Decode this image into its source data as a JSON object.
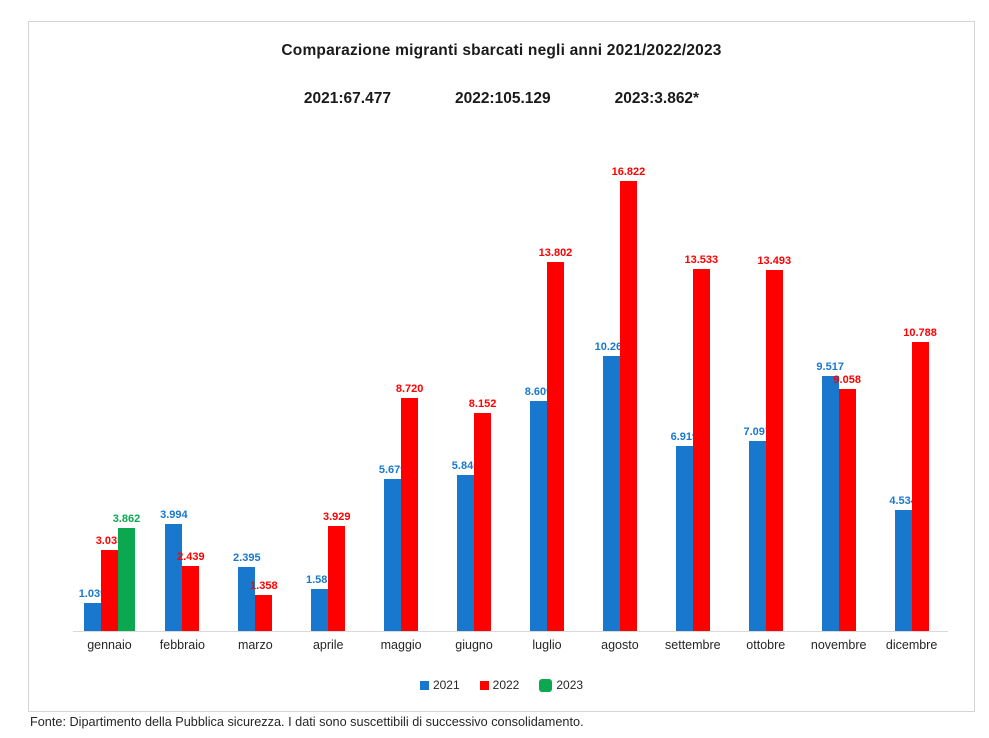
{
  "chart_data": {
    "type": "bar",
    "title": "Comparazione migranti sbarcati negli anni 2021/2022/2023",
    "totals": [
      "2021:67.477",
      "2022:105.129",
      "2023:3.862*"
    ],
    "categories": [
      "gennaio",
      "febbraio",
      "marzo",
      "aprile",
      "maggio",
      "giugno",
      "luglio",
      "agosto",
      "settembre",
      "ottobre",
      "novembre",
      "dicembre"
    ],
    "series": [
      {
        "name": "2021",
        "color": "#1878ce",
        "values": [
          1039,
          3994,
          2395,
          1585,
          5679,
          5840,
          8609,
          10269,
          6919,
          7097,
          9517,
          4534
        ]
      },
      {
        "name": "2022",
        "color": "#fe0000",
        "values": [
          3035,
          2439,
          1358,
          3929,
          8720,
          8152,
          13802,
          16822,
          13533,
          13493,
          9058,
          10788
        ]
      },
      {
        "name": "2023",
        "color": "#0ba84f",
        "values": [
          3862,
          null,
          null,
          null,
          null,
          null,
          null,
          null,
          null,
          null,
          null,
          null
        ]
      }
    ],
    "data_labels": {
      "2021": [
        "1.039",
        "3.994",
        "2.395",
        "1.585",
        "5.679",
        "5.840",
        "8.609",
        "10.269",
        "6.919",
        "7.097",
        "9.517",
        "4.534"
      ],
      "2022": [
        "3.035",
        "2.439",
        "1.358",
        "3.929",
        "8.720",
        "8.152",
        "13.802",
        "16.822",
        "13.533",
        "13.493",
        "9.058",
        "10.788"
      ],
      "2023": [
        "3.862",
        null,
        null,
        null,
        null,
        null,
        null,
        null,
        null,
        null,
        null,
        null
      ]
    },
    "ylim": [
      0,
      16822
    ],
    "grid": false,
    "legend_position": "bottom"
  },
  "footer": {
    "source_note": "Fonte: Dipartimento della Pubblica sicurezza. I dati sono suscettibili di successivo consolidamento."
  }
}
